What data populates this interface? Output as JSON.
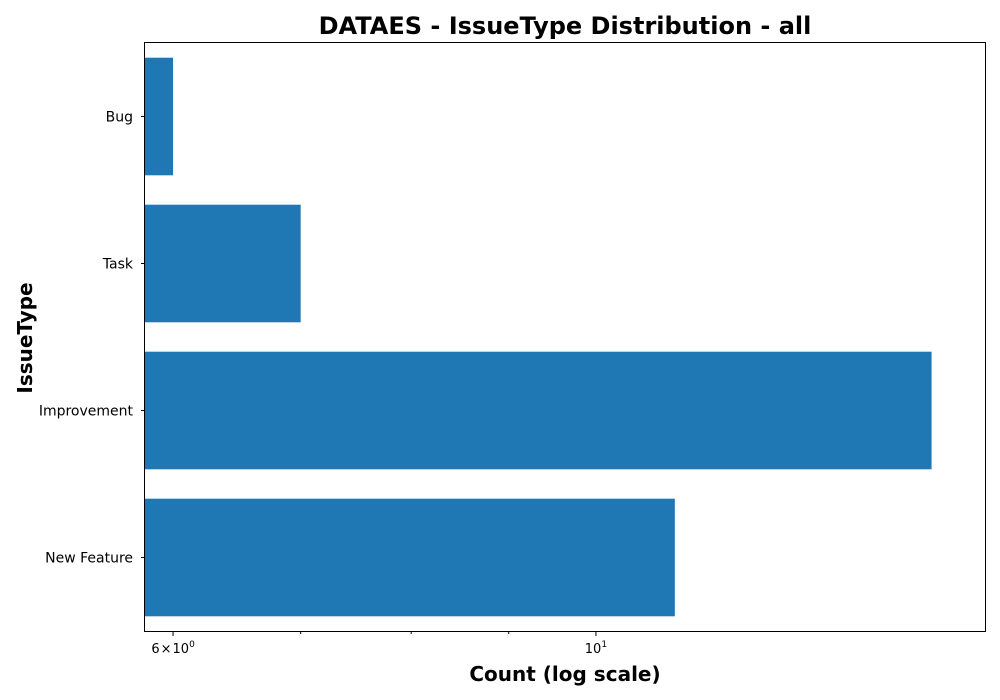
{
  "chart_data": {
    "type": "bar",
    "orientation": "horizontal",
    "title": "DATAES - IssueType Distribution - all",
    "xlabel": "Count (log scale)",
    "ylabel": "IssueType",
    "x_scale": "log",
    "xlim": [
      5.8,
      16
    ],
    "x_tick_labels": {
      "six": {
        "value": 6,
        "mantissa": "6",
        "times": "×",
        "base": "10",
        "exp": "0"
      },
      "ten": {
        "value": 10,
        "base": "10",
        "exp": "1"
      }
    },
    "x_minor_ticks": [
      7,
      8,
      9
    ],
    "categories": [
      "Bug",
      "Task",
      "Improvement",
      "New Feature"
    ],
    "values": [
      6,
      7,
      15,
      11
    ],
    "bar_color": "#1f77b4",
    "grid": false,
    "legend": "none"
  }
}
